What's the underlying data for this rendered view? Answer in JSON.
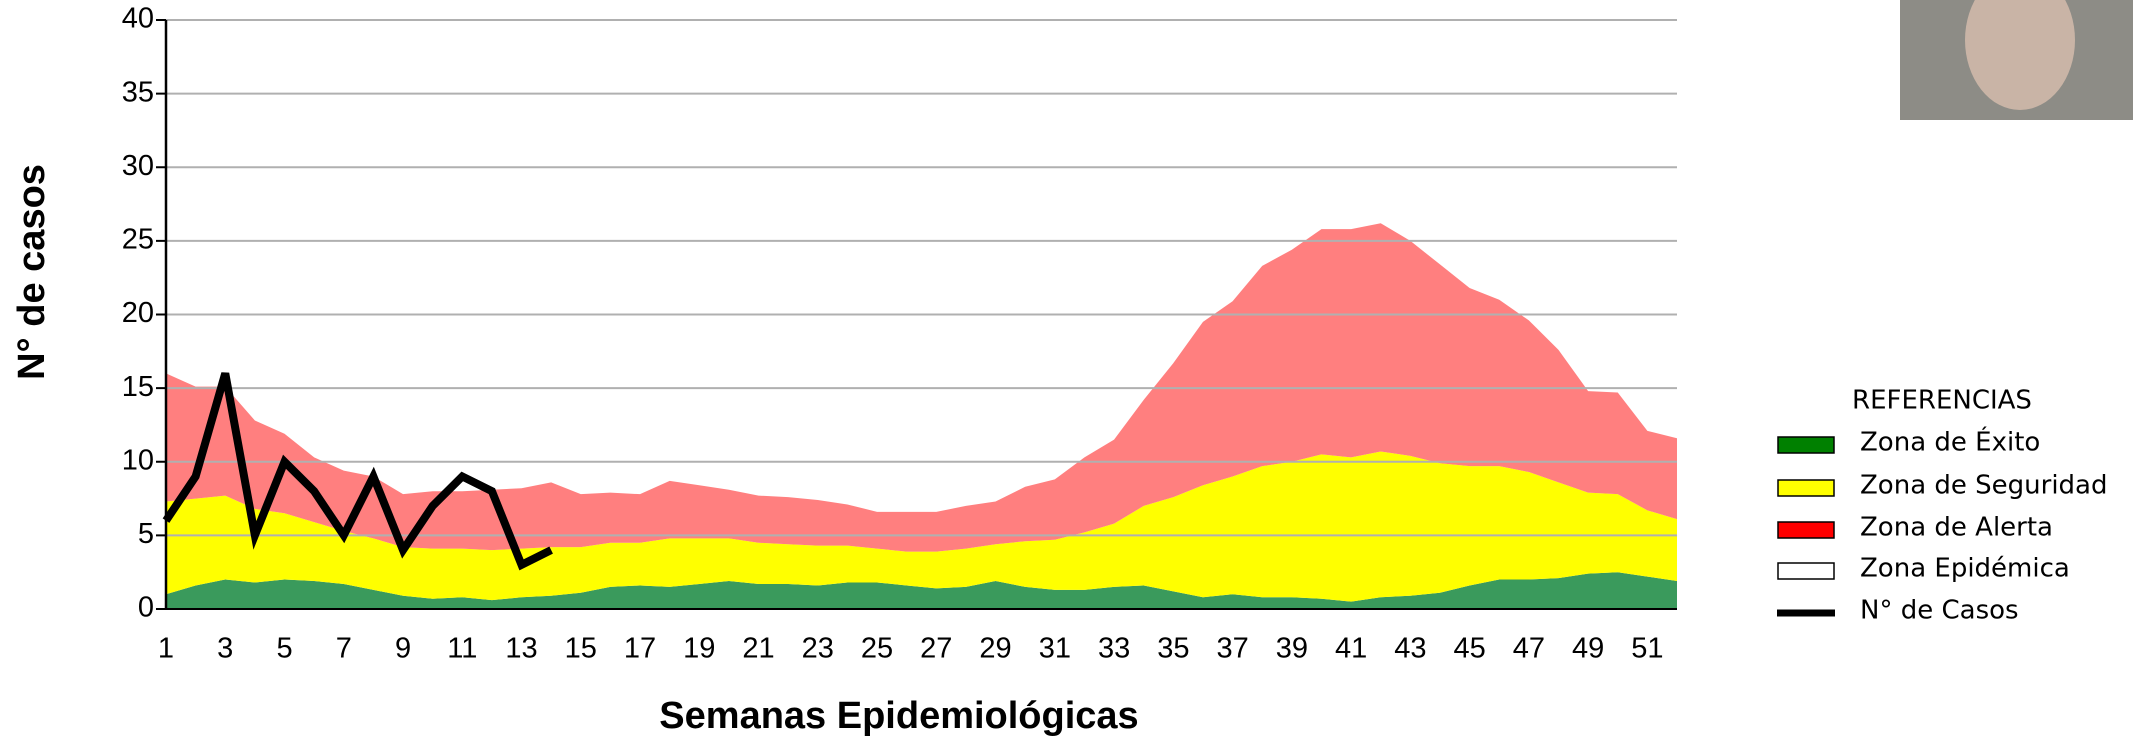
{
  "chart_data": {
    "type": "endemic-channel",
    "x_label": "Semanas Epidemiológicas",
    "y_label": "N° de casos",
    "x": [
      1,
      2,
      3,
      4,
      5,
      6,
      7,
      8,
      9,
      10,
      11,
      12,
      13,
      14,
      15,
      16,
      17,
      18,
      19,
      20,
      21,
      22,
      23,
      24,
      25,
      26,
      27,
      28,
      29,
      30,
      31,
      32,
      33,
      34,
      35,
      36,
      37,
      38,
      39,
      40,
      41,
      42,
      43,
      44,
      45,
      46,
      47,
      48,
      49,
      50,
      51,
      52
    ],
    "xlim": [
      1,
      52
    ],
    "xticks": [
      1,
      3,
      5,
      7,
      9,
      11,
      13,
      15,
      17,
      19,
      21,
      23,
      25,
      27,
      29,
      31,
      33,
      35,
      37,
      39,
      41,
      43,
      45,
      47,
      49,
      51
    ],
    "ylim": [
      0,
      40
    ],
    "yticks": [
      0,
      5,
      10,
      15,
      20,
      25,
      30,
      35,
      40
    ],
    "grid": true,
    "series": [
      {
        "name": "Zona de Éxito",
        "kind": "area",
        "color": "#3a9a5c",
        "legend_color": "#008000",
        "values": [
          1.0,
          1.6,
          2.0,
          1.8,
          2.0,
          1.9,
          1.7,
          1.3,
          0.9,
          0.7,
          0.8,
          0.6,
          0.8,
          0.9,
          1.1,
          1.5,
          1.6,
          1.5,
          1.7,
          1.9,
          1.7,
          1.7,
          1.6,
          1.8,
          1.8,
          1.6,
          1.4,
          1.5,
          1.9,
          1.5,
          1.3,
          1.3,
          1.5,
          1.6,
          1.2,
          0.8,
          1.0,
          0.8,
          0.8,
          0.7,
          0.5,
          0.8,
          0.9,
          1.1,
          1.6,
          2.0,
          2.0,
          2.1,
          2.4,
          2.5,
          2.2,
          1.9
        ]
      },
      {
        "name": "Zona de Seguridad",
        "kind": "area",
        "color": "#ffff00",
        "legend_color": "#ffff00",
        "values": [
          6.3,
          5.9,
          5.7,
          5.0,
          4.5,
          4.0,
          3.6,
          3.5,
          3.3,
          3.4,
          3.3,
          3.4,
          3.3,
          3.3,
          3.1,
          3.0,
          2.9,
          3.3,
          3.1,
          2.9,
          2.8,
          2.7,
          2.7,
          2.5,
          2.3,
          2.3,
          2.5,
          2.6,
          2.5,
          3.1,
          3.4,
          3.9,
          4.3,
          5.4,
          6.4,
          7.6,
          8.0,
          8.9,
          9.2,
          9.8,
          9.8,
          9.9,
          9.5,
          8.8,
          8.1,
          7.7,
          7.3,
          6.5,
          5.5,
          5.3,
          4.5,
          4.2
        ]
      },
      {
        "name": "Zona de Alerta",
        "kind": "area",
        "color": "#ff7f7f",
        "legend_color": "#ff0000",
        "values": [
          8.7,
          7.6,
          7.4,
          6.0,
          5.4,
          4.4,
          4.1,
          4.2,
          3.6,
          3.9,
          3.9,
          4.1,
          4.1,
          4.4,
          3.6,
          3.4,
          3.3,
          3.9,
          3.6,
          3.3,
          3.2,
          3.2,
          3.1,
          2.8,
          2.5,
          2.7,
          2.7,
          2.9,
          2.9,
          3.7,
          4.1,
          5.1,
          5.7,
          7.2,
          9.1,
          11.1,
          11.9,
          13.6,
          14.4,
          15.3,
          15.5,
          15.5,
          14.6,
          13.5,
          12.1,
          11.3,
          10.3,
          9.0,
          6.9,
          6.9,
          5.4,
          5.5
        ]
      },
      {
        "name": "N° de Casos",
        "kind": "line",
        "color": "#000000",
        "legend_color": "#000000",
        "values": [
          6,
          9,
          16,
          5,
          10,
          8,
          5,
          9,
          4,
          7,
          9,
          8,
          3,
          4,
          null,
          null,
          null,
          null,
          null,
          null,
          null,
          null,
          null,
          null,
          null,
          null,
          null,
          null,
          null,
          null,
          null,
          null,
          null,
          null,
          null,
          null,
          null,
          null,
          null,
          null,
          null,
          null,
          null,
          null,
          null,
          null,
          null,
          null,
          null,
          null,
          null,
          null
        ]
      }
    ],
    "legend": {
      "title": "REFERENCIAS",
      "extra": [
        {
          "name": "Zona Epidémica",
          "color": "#ffffff"
        }
      ]
    }
  }
}
